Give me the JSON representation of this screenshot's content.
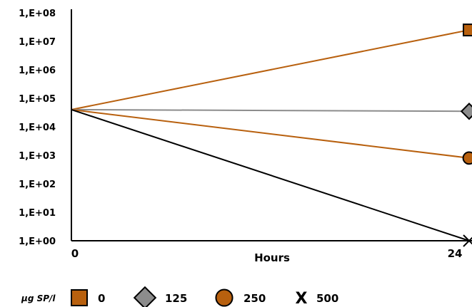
{
  "chart_data": {
    "type": "line",
    "xlabel": "Hours",
    "x": [
      0,
      24
    ],
    "x_tick_labels": [
      "0",
      "24"
    ],
    "y_scale": "log",
    "ylim": [
      1,
      100000000
    ],
    "y_tick_values": [
      1,
      10,
      100,
      1000,
      10000,
      100000,
      1000000,
      10000000,
      100000000
    ],
    "y_tick_labels": [
      "1,E+00",
      "1,E+01",
      "1,E+02",
      "1,E+03",
      "1,E+04",
      "1,E+05",
      "1,E+06",
      "1,E+07",
      "1,E+08"
    ],
    "legend_title": "µg SP/l",
    "legend_position": "bottom",
    "series": [
      {
        "name": "0",
        "values": [
          40000,
          25000000
        ],
        "color": "#b8600e",
        "marker": "square"
      },
      {
        "name": "125",
        "values": [
          40000,
          35000
        ],
        "color": "#8c8c8c",
        "marker": "diamond"
      },
      {
        "name": "250",
        "values": [
          40000,
          800
        ],
        "color": "#b8600e",
        "marker": "circle"
      },
      {
        "name": "500",
        "values": [
          40000,
          1
        ],
        "color": "#000000",
        "marker": "x"
      }
    ]
  }
}
